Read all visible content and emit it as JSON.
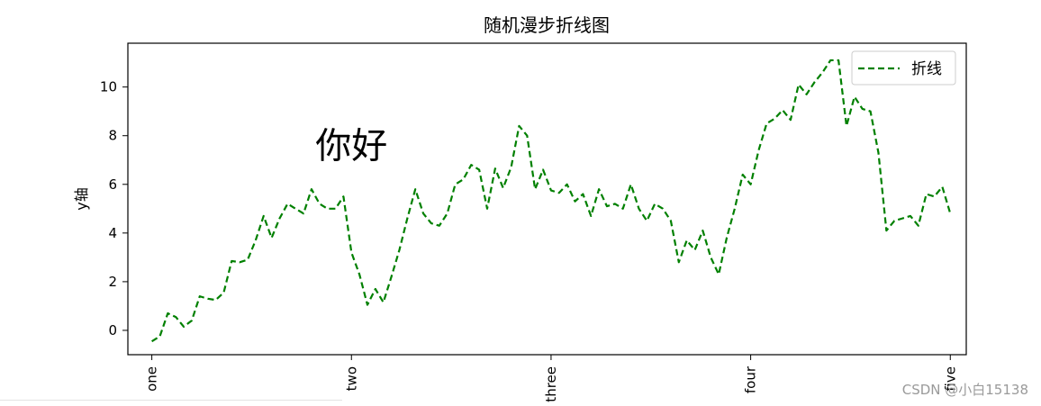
{
  "chart_data": {
    "type": "line",
    "title": "随机漫步折线图",
    "xlabel": "",
    "ylabel": "y轴",
    "ylim": [
      -1.0,
      11.8
    ],
    "yticks": [
      0,
      2,
      4,
      6,
      8,
      10
    ],
    "xlim": [
      -3,
      102
    ],
    "xticks": [
      {
        "pos": 0,
        "label": "one"
      },
      {
        "pos": 25,
        "label": "two"
      },
      {
        "pos": 50,
        "label": "three"
      },
      {
        "pos": 75,
        "label": "four"
      },
      {
        "pos": 100,
        "label": "five"
      }
    ],
    "annotation": {
      "text": "你好",
      "x": 25,
      "y": 7.6
    },
    "legend": {
      "location": "upper right"
    },
    "series": [
      {
        "name": "折线",
        "color": "#008000",
        "linestyle": "dashed",
        "values": [
          -0.45,
          -0.25,
          0.7,
          0.55,
          0.15,
          0.4,
          1.4,
          1.3,
          1.25,
          1.55,
          2.85,
          2.8,
          2.9,
          3.7,
          4.7,
          3.8,
          4.6,
          5.2,
          5.0,
          4.8,
          5.8,
          5.2,
          5.0,
          5.0,
          5.5,
          3.2,
          2.3,
          1.05,
          1.7,
          1.15,
          2.2,
          3.3,
          4.6,
          5.8,
          4.8,
          4.4,
          4.3,
          4.8,
          6.0,
          6.2,
          6.8,
          6.6,
          5.0,
          6.65,
          5.85,
          6.7,
          8.4,
          8.0,
          5.8,
          6.6,
          5.75,
          5.65,
          6.0,
          5.3,
          5.6,
          4.7,
          5.8,
          5.1,
          5.2,
          5.0,
          6.0,
          5.0,
          4.5,
          5.2,
          5.0,
          4.5,
          2.8,
          3.7,
          3.3,
          4.1,
          3.0,
          2.3,
          3.8,
          5.0,
          6.4,
          6.0,
          7.4,
          8.5,
          8.7,
          9.05,
          8.65,
          10.1,
          9.7,
          10.2,
          10.6,
          11.1,
          11.1,
          8.4,
          9.6,
          9.1,
          9.0,
          7.3,
          4.1,
          4.5,
          4.6,
          4.7,
          4.3,
          5.6,
          5.5,
          5.9,
          4.8
        ]
      }
    ]
  },
  "watermark": "CSDN @小白15138"
}
